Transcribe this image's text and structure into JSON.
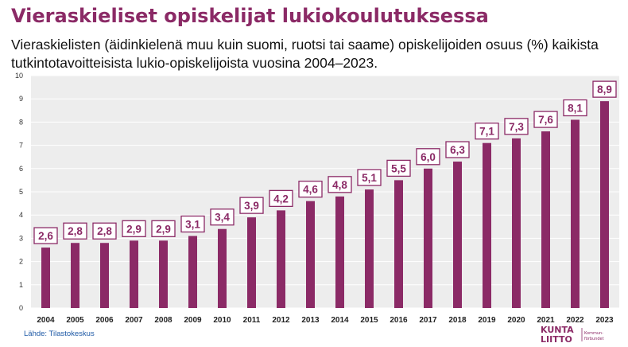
{
  "title": "Vieraskieliset opiskelijat lukiokoulutuksessa",
  "subtitle": "Vieraskielisten (äidinkielenä muu kuin suomi, ruotsi tai saame) opiskelijoiden osuus (%) kaikista tutkintotavoitteisista lukio-opiskelijoista vuosina 2004–2023.",
  "source": "Lähde: Tilastokeskus",
  "logo": {
    "line1": "KUNTA",
    "line2": "LIITTO",
    "side1": "Kommun-",
    "side2": "förbundet"
  },
  "colors": {
    "accent": "#8b2a66",
    "plot_background": "#ededed",
    "grid": "#ffffff"
  },
  "chart_data": {
    "type": "bar",
    "categories": [
      "2004",
      "2005",
      "2006",
      "2007",
      "2008",
      "2009",
      "2010",
      "2011",
      "2012",
      "2013",
      "2014",
      "2015",
      "2016",
      "2017",
      "2018",
      "2019",
      "2020",
      "2021",
      "2022",
      "2023"
    ],
    "values": [
      2.6,
      2.8,
      2.8,
      2.9,
      2.9,
      3.1,
      3.4,
      3.9,
      4.2,
      4.6,
      4.8,
      5.1,
      5.5,
      6.0,
      6.3,
      7.1,
      7.3,
      7.6,
      8.1,
      8.9
    ],
    "data_labels": [
      "2,6",
      "2,8",
      "2,8",
      "2,9",
      "2,9",
      "3,1",
      "3,4",
      "3,9",
      "4,2",
      "4,6",
      "4,8",
      "5,1",
      "5,5",
      "6,0",
      "6,3",
      "7,1",
      "7,3",
      "7,6",
      "8,1",
      "8,9"
    ],
    "yticks": [
      0,
      1,
      2,
      3,
      4,
      5,
      6,
      7,
      8,
      9,
      10
    ],
    "ylim": [
      0,
      10
    ],
    "grid": true,
    "legend": "none"
  }
}
